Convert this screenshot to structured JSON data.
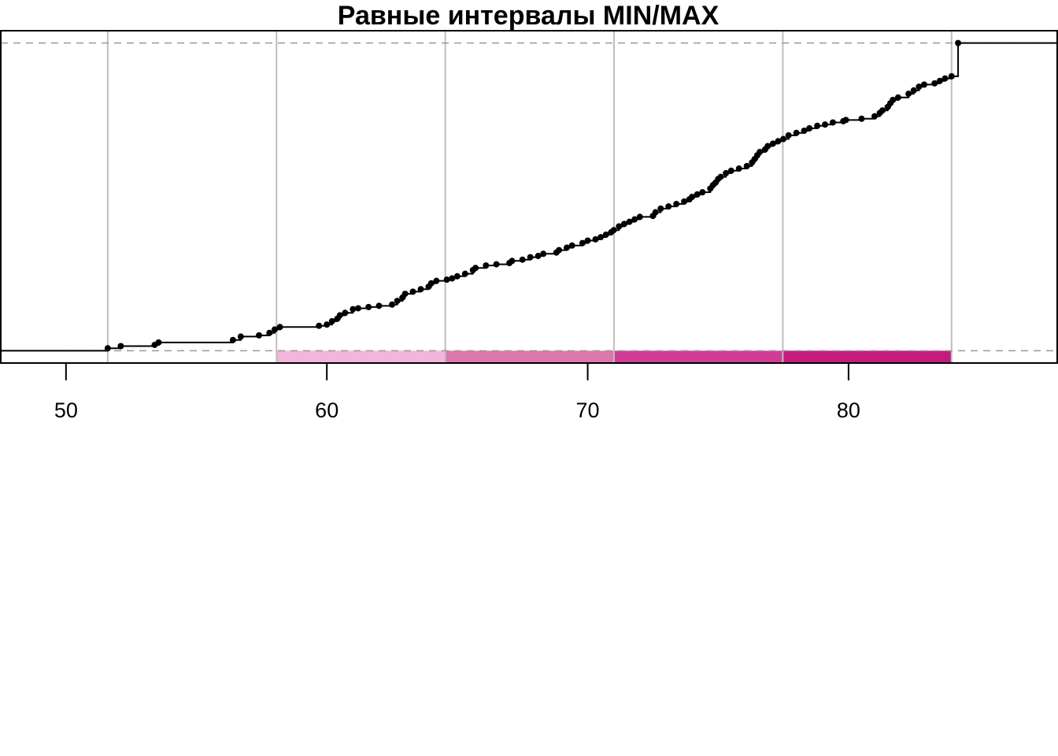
{
  "chart_data": {
    "type": "step",
    "title": "Равные интервалы MIN/MAX",
    "xlabel": "",
    "ylabel": "",
    "xlim": [
      47.5,
      88.0
    ],
    "ylim": [
      -0.04,
      1.04
    ],
    "x_ticks": [
      50,
      60,
      70,
      80
    ],
    "x_tick_labels": [
      "50",
      "60",
      "70",
      "80"
    ],
    "grid": false,
    "reference_lines_y": [
      0,
      1
    ],
    "breaks": [
      51.6,
      58.07,
      64.54,
      71.01,
      77.48,
      83.95
    ],
    "class_colors": [
      "#ffffff",
      "#f1b6da",
      "#de77ae",
      "#d13c96",
      "#c51b7d"
    ],
    "colors": {
      "line": "#000000",
      "points": "#000000",
      "breaks": "#bebebe",
      "reference": "#999999"
    },
    "ecdf_points": [
      [
        51.6,
        0.008
      ],
      [
        52.1,
        0.015
      ],
      [
        53.4,
        0.019
      ],
      [
        53.55,
        0.027
      ],
      [
        56.4,
        0.035
      ],
      [
        56.7,
        0.046
      ],
      [
        57.4,
        0.05
      ],
      [
        57.8,
        0.058
      ],
      [
        58.0,
        0.069
      ],
      [
        58.2,
        0.077
      ],
      [
        59.7,
        0.081
      ],
      [
        60.0,
        0.085
      ],
      [
        60.2,
        0.096
      ],
      [
        60.4,
        0.104
      ],
      [
        60.5,
        0.115
      ],
      [
        60.7,
        0.123
      ],
      [
        61.0,
        0.135
      ],
      [
        61.2,
        0.138
      ],
      [
        61.6,
        0.142
      ],
      [
        62.0,
        0.146
      ],
      [
        62.5,
        0.15
      ],
      [
        62.7,
        0.162
      ],
      [
        62.9,
        0.173
      ],
      [
        63.0,
        0.185
      ],
      [
        63.3,
        0.192
      ],
      [
        63.6,
        0.2
      ],
      [
        63.9,
        0.208
      ],
      [
        64.0,
        0.219
      ],
      [
        64.2,
        0.227
      ],
      [
        64.6,
        0.231
      ],
      [
        64.8,
        0.235
      ],
      [
        65.0,
        0.242
      ],
      [
        65.3,
        0.25
      ],
      [
        65.6,
        0.262
      ],
      [
        65.7,
        0.269
      ],
      [
        66.1,
        0.277
      ],
      [
        66.5,
        0.281
      ],
      [
        67.0,
        0.285
      ],
      [
        67.1,
        0.292
      ],
      [
        67.5,
        0.296
      ],
      [
        67.8,
        0.304
      ],
      [
        68.1,
        0.308
      ],
      [
        68.3,
        0.315
      ],
      [
        68.8,
        0.319
      ],
      [
        68.9,
        0.327
      ],
      [
        69.2,
        0.335
      ],
      [
        69.4,
        0.342
      ],
      [
        69.8,
        0.35
      ],
      [
        70.0,
        0.358
      ],
      [
        70.3,
        0.362
      ],
      [
        70.5,
        0.369
      ],
      [
        70.7,
        0.377
      ],
      [
        70.9,
        0.385
      ],
      [
        71.0,
        0.392
      ],
      [
        71.2,
        0.404
      ],
      [
        71.4,
        0.412
      ],
      [
        71.6,
        0.419
      ],
      [
        71.8,
        0.427
      ],
      [
        72.0,
        0.435
      ],
      [
        72.5,
        0.438
      ],
      [
        72.6,
        0.45
      ],
      [
        72.8,
        0.462
      ],
      [
        73.1,
        0.469
      ],
      [
        73.4,
        0.477
      ],
      [
        73.7,
        0.485
      ],
      [
        73.9,
        0.492
      ],
      [
        74.0,
        0.5
      ],
      [
        74.2,
        0.508
      ],
      [
        74.4,
        0.515
      ],
      [
        74.7,
        0.527
      ],
      [
        74.8,
        0.538
      ],
      [
        74.9,
        0.546
      ],
      [
        75.0,
        0.558
      ],
      [
        75.1,
        0.565
      ],
      [
        75.3,
        0.577
      ],
      [
        75.5,
        0.585
      ],
      [
        75.8,
        0.592
      ],
      [
        76.1,
        0.6
      ],
      [
        76.3,
        0.612
      ],
      [
        76.4,
        0.623
      ],
      [
        76.5,
        0.635
      ],
      [
        76.6,
        0.646
      ],
      [
        76.8,
        0.654
      ],
      [
        76.9,
        0.665
      ],
      [
        77.1,
        0.673
      ],
      [
        77.3,
        0.681
      ],
      [
        77.5,
        0.688
      ],
      [
        77.7,
        0.7
      ],
      [
        78.0,
        0.708
      ],
      [
        78.3,
        0.715
      ],
      [
        78.5,
        0.723
      ],
      [
        78.8,
        0.731
      ],
      [
        79.1,
        0.735
      ],
      [
        79.4,
        0.742
      ],
      [
        79.8,
        0.746
      ],
      [
        79.9,
        0.75
      ],
      [
        80.5,
        0.754
      ],
      [
        81.0,
        0.762
      ],
      [
        81.2,
        0.773
      ],
      [
        81.3,
        0.781
      ],
      [
        81.5,
        0.792
      ],
      [
        81.6,
        0.804
      ],
      [
        81.7,
        0.815
      ],
      [
        81.9,
        0.823
      ],
      [
        82.3,
        0.835
      ],
      [
        82.5,
        0.846
      ],
      [
        82.7,
        0.858
      ],
      [
        82.9,
        0.865
      ],
      [
        83.3,
        0.869
      ],
      [
        83.5,
        0.877
      ],
      [
        83.7,
        0.885
      ],
      [
        83.95,
        0.892
      ],
      [
        84.2,
        1.0
      ]
    ]
  }
}
